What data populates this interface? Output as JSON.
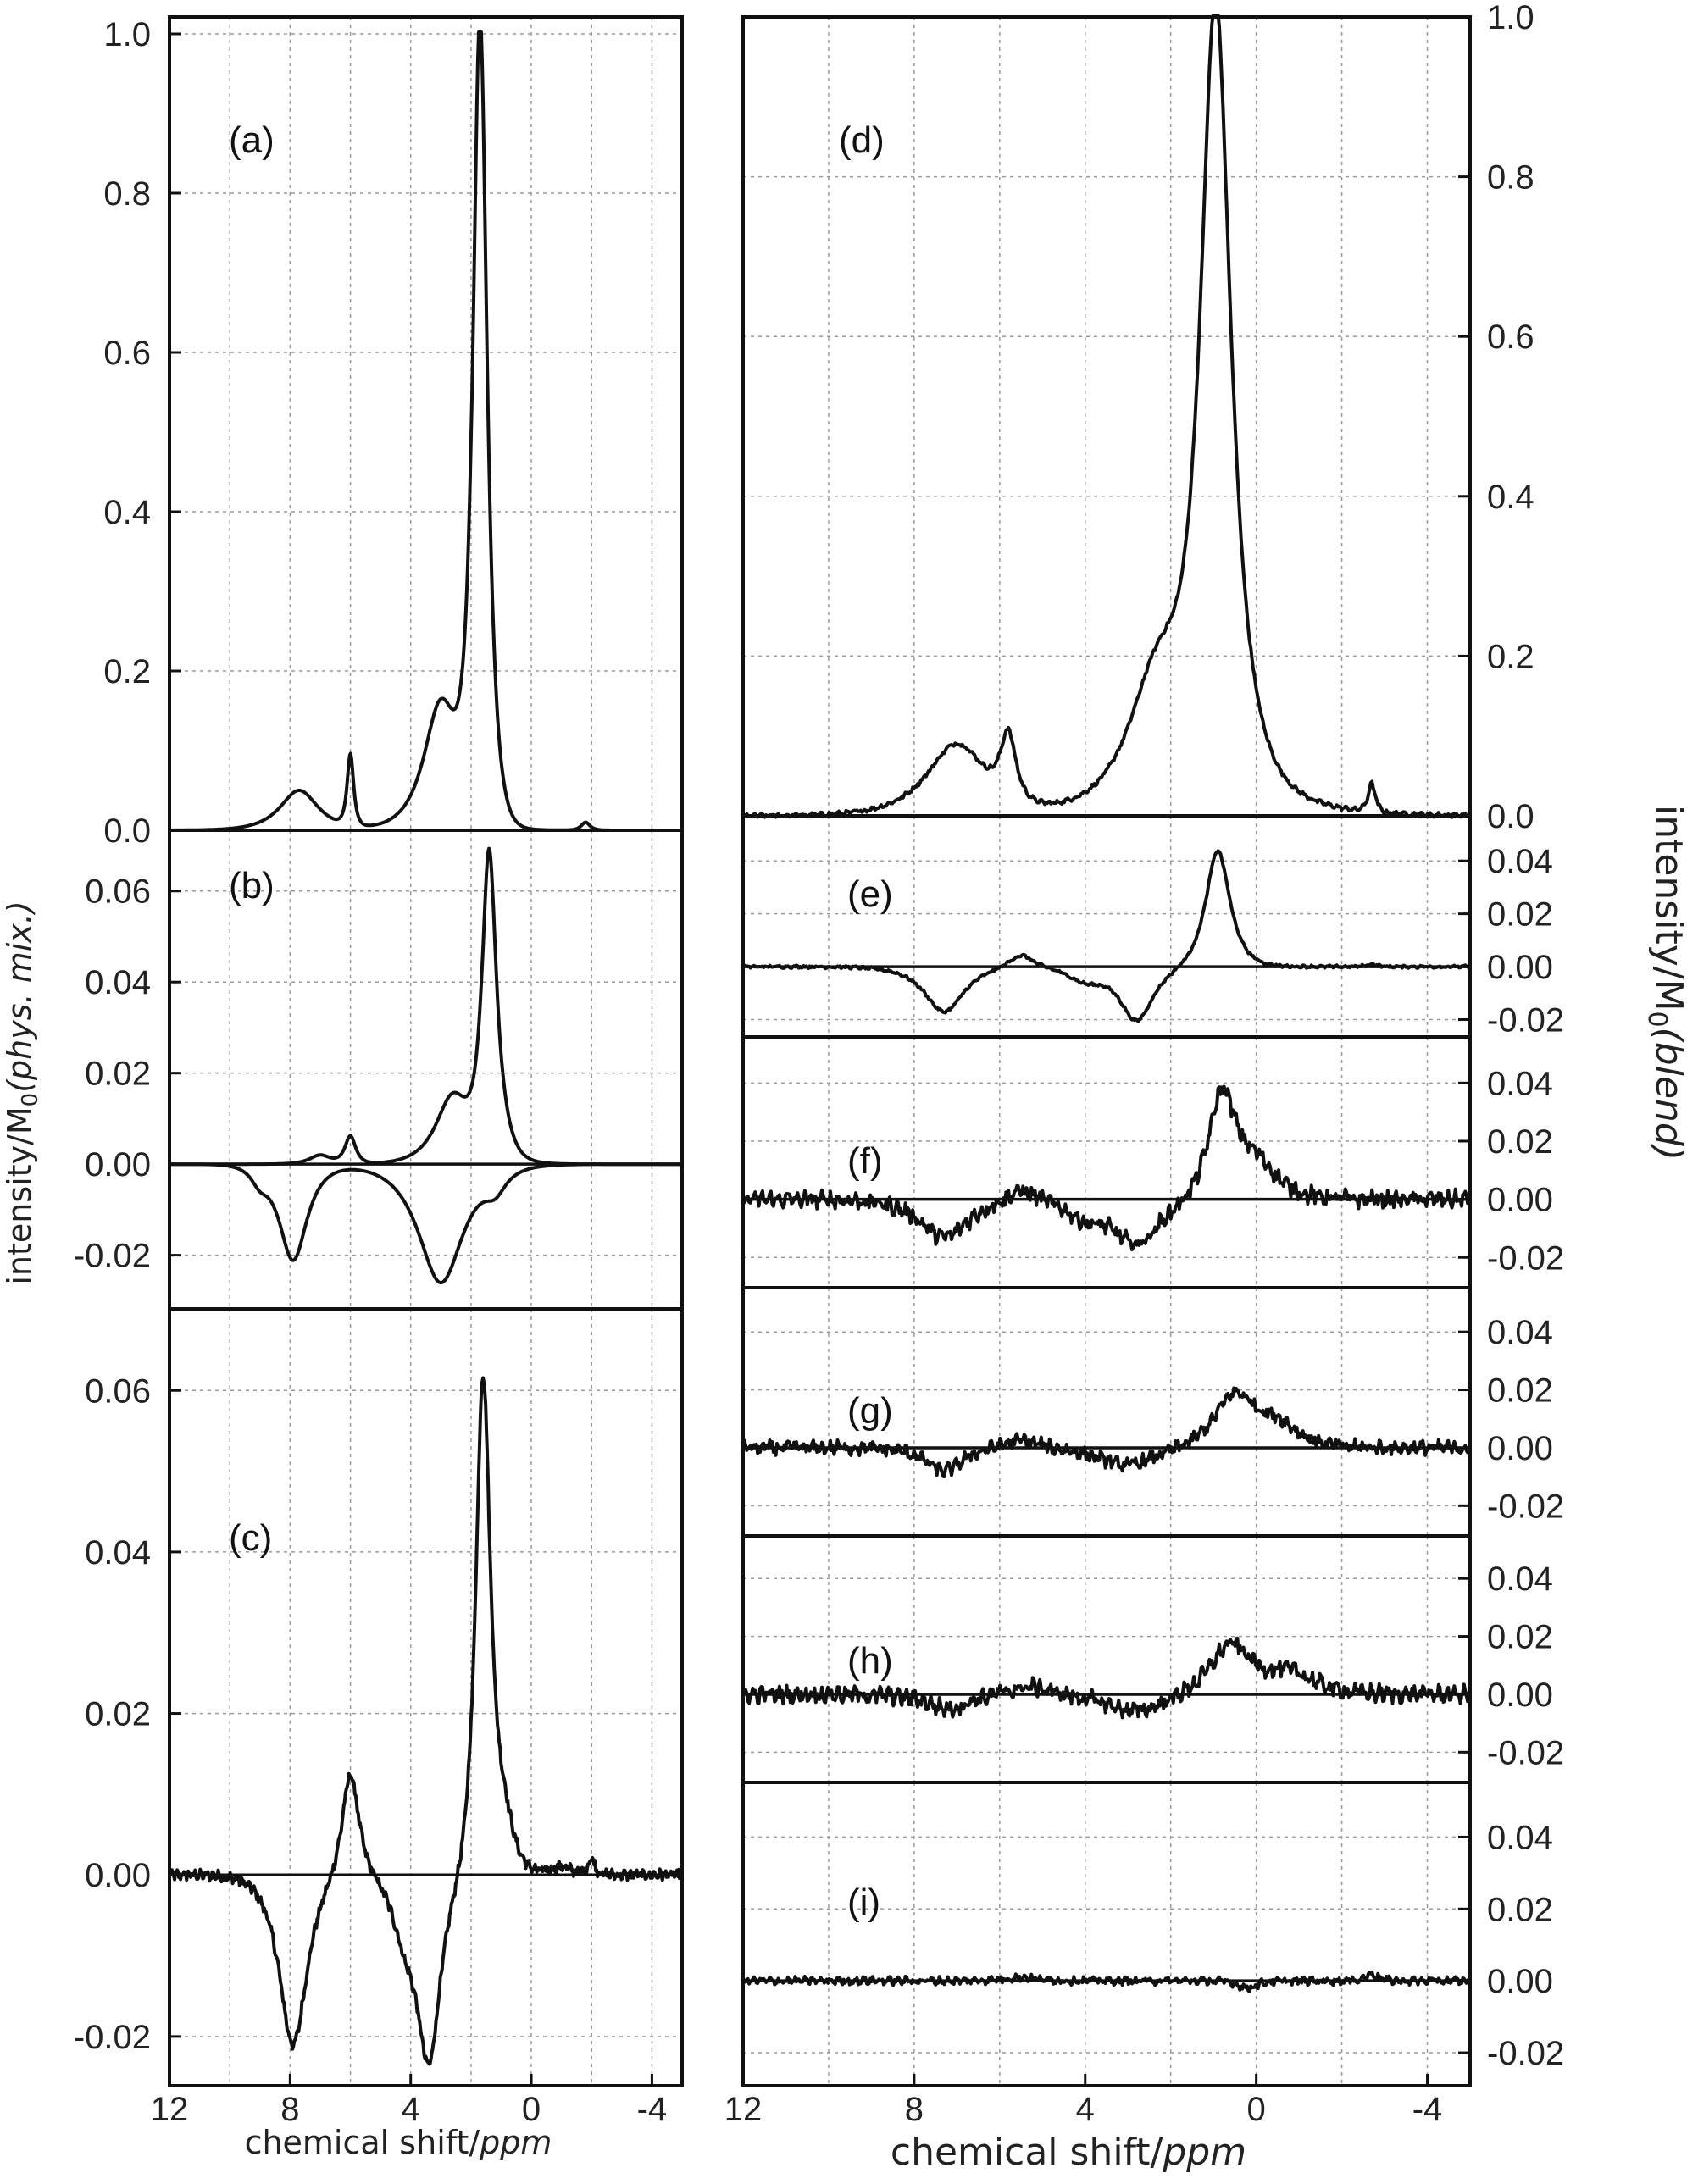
{
  "chart_data": [
    {
      "id": "a",
      "label": "(a)",
      "type": "line",
      "xlim": [
        12,
        -5
      ],
      "ylim": [
        0,
        1.0
      ],
      "yticks": [
        "0.0",
        "0.2",
        "0.4",
        "0.6",
        "0.8",
        "1.0"
      ],
      "ytick_values": [
        0,
        0.2,
        0.4,
        0.6,
        0.8,
        1.0
      ],
      "series": [
        {
          "peaks": [
            [
              1.7,
              1.0,
              0.33
            ],
            [
              3.0,
              0.16,
              0.8
            ],
            [
              6.0,
              0.09,
              0.15
            ],
            [
              7.7,
              0.05,
              0.9
            ],
            [
              -1.8,
              0.01,
              0.2
            ]
          ],
          "noise": 0
        }
      ]
    },
    {
      "id": "b",
      "label": "(b)",
      "type": "line",
      "xlim": [
        12,
        -5
      ],
      "ylim": [
        -0.029,
        0.07
      ],
      "yticks": [
        "-0.02",
        "0.00",
        "0.02",
        "0.04",
        "0.06"
      ],
      "ytick_values": [
        -0.02,
        0.0,
        0.02,
        0.04,
        0.06
      ],
      "series": [
        {
          "peaks": [
            [
              1.4,
              0.064,
              0.33
            ],
            [
              2.6,
              0.015,
              0.8
            ],
            [
              1.0,
              0.004,
              0.6
            ],
            [
              6.0,
              0.006,
              0.25
            ],
            [
              7.0,
              0.002,
              0.5
            ]
          ],
          "noise": 0
        },
        {
          "peaks": [
            [
              7.9,
              -0.021,
              0.65
            ],
            [
              3.0,
              -0.026,
              1.05
            ],
            [
              9.0,
              -0.003,
              0.4
            ],
            [
              1.2,
              -0.004,
              0.5
            ]
          ],
          "noise": 0
        }
      ]
    },
    {
      "id": "c",
      "label": "(c)",
      "type": "line",
      "xlim": [
        12,
        -5
      ],
      "ylim": [
        -0.024,
        0.068
      ],
      "yticks": [
        "-0.02",
        "0.00",
        "0.02",
        "0.04",
        "0.06"
      ],
      "ytick_values": [
        -0.02,
        0.0,
        0.02,
        0.04,
        0.06
      ],
      "series": [
        {
          "peaks": [
            [
              1.6,
              0.061,
              0.35
            ],
            [
              0.9,
              0.006,
              0.5
            ],
            [
              6.0,
              0.013,
              0.4
            ],
            [
              7.9,
              -0.021,
              0.65
            ],
            [
              3.4,
              -0.022,
              0.55
            ],
            [
              4.2,
              -0.006,
              0.6
            ],
            [
              -1.0,
              0.001,
              0.5
            ],
            [
              -2.0,
              0.002,
              0.15
            ]
          ],
          "noise": 0.0005
        }
      ]
    },
    {
      "id": "d",
      "label": "(d)",
      "type": "line",
      "xlim": [
        12,
        -5
      ],
      "ylim": [
        0,
        1.0
      ],
      "yticks": [
        "0.0",
        "0.2",
        "0.4",
        "0.6",
        "0.8",
        "1.0"
      ],
      "ytick_values": [
        0,
        0.2,
        0.4,
        0.6,
        0.8,
        1.0
      ],
      "series": [
        {
          "peaks": [
            [
              0.95,
              0.94,
              0.5
            ],
            [
              2.3,
              0.17,
              1.0
            ],
            [
              7.0,
              0.09,
              1.0
            ],
            [
              5.8,
              0.08,
              0.25
            ],
            [
              -2.7,
              0.035,
              0.12
            ],
            [
              0.4,
              0.05,
              1.6
            ]
          ],
          "noise": 0.002
        }
      ]
    },
    {
      "id": "e",
      "label": "(e)",
      "type": "line",
      "xlim": [
        12,
        -5
      ],
      "ylim": [
        -0.024,
        0.05
      ],
      "yticks": [
        "-0.02",
        "0.00",
        "0.02",
        "0.04"
      ],
      "ytick_values": [
        -0.02,
        0.0,
        0.02,
        0.04
      ],
      "series": [
        {
          "peaks": [
            [
              0.9,
              0.044,
              0.4
            ],
            [
              7.3,
              -0.017,
              0.65
            ],
            [
              5.5,
              0.005,
              0.4
            ],
            [
              2.8,
              -0.02,
              0.55
            ],
            [
              4.0,
              -0.005,
              0.6
            ],
            [
              -2.7,
              0.001,
              0.15
            ]
          ],
          "noise": 0.0004
        }
      ]
    },
    {
      "id": "f",
      "label": "(f)",
      "type": "line",
      "xlim": [
        12,
        -5
      ],
      "ylim": [
        -0.024,
        0.05
      ],
      "yticks": [
        "-0.02",
        "0.00",
        "0.02",
        "0.04"
      ],
      "ytick_values": [
        -0.02,
        0.0,
        0.02,
        0.04
      ],
      "series": [
        {
          "peaks": [
            [
              0.8,
              0.035,
              0.45
            ],
            [
              0.0,
              0.012,
              0.7
            ],
            [
              7.3,
              -0.013,
              0.8
            ],
            [
              5.5,
              0.004,
              0.5
            ],
            [
              2.8,
              -0.015,
              0.8
            ],
            [
              4.0,
              -0.005,
              0.6
            ]
          ],
          "noise": 0.0022
        }
      ]
    },
    {
      "id": "g",
      "label": "(g)",
      "type": "line",
      "xlim": [
        12,
        -5
      ],
      "ylim": [
        -0.024,
        0.05
      ],
      "yticks": [
        "-0.02",
        "0.00",
        "0.02",
        "0.04"
      ],
      "ytick_values": [
        -0.02,
        0.0,
        0.02,
        0.04
      ],
      "series": [
        {
          "peaks": [
            [
              0.5,
              0.018,
              0.7
            ],
            [
              -0.5,
              0.007,
              0.7
            ],
            [
              7.3,
              -0.008,
              0.6
            ],
            [
              5.5,
              0.003,
              0.6
            ],
            [
              3.0,
              -0.006,
              1.0
            ]
          ],
          "noise": 0.0018
        }
      ]
    },
    {
      "id": "h",
      "label": "(h)",
      "type": "line",
      "xlim": [
        12,
        -5
      ],
      "ylim": [
        -0.024,
        0.05
      ],
      "yticks": [
        "-0.02",
        "0.00",
        "0.02",
        "0.04"
      ],
      "ytick_values": [
        -0.02,
        0.0,
        0.02,
        0.04
      ],
      "series": [
        {
          "peaks": [
            [
              0.6,
              0.017,
              0.7
            ],
            [
              -0.8,
              0.007,
              0.8
            ],
            [
              7.2,
              -0.005,
              0.7
            ],
            [
              5.3,
              0.003,
              0.7
            ],
            [
              2.8,
              -0.006,
              1.0
            ]
          ],
          "noise": 0.0022
        }
      ]
    },
    {
      "id": "i",
      "label": "(i)",
      "type": "line",
      "xlim": [
        12,
        -5
      ],
      "ylim": [
        -0.024,
        0.05
      ],
      "yticks": [
        "-0.02",
        "0.00",
        "0.02",
        "0.04"
      ],
      "ytick_values": [
        -0.02,
        0.0,
        0.02,
        0.04
      ],
      "series": [
        {
          "peaks": [
            [
              -2.7,
              0.002,
              0.2
            ],
            [
              0.2,
              -0.002,
              0.3
            ],
            [
              5.5,
              0.001,
              0.5
            ]
          ],
          "noise": 0.0008
        }
      ]
    }
  ],
  "x_axis": {
    "ticks": [
      "12",
      "8",
      "4",
      "0",
      "-4"
    ],
    "tick_values": [
      12,
      8,
      4,
      0,
      -4
    ],
    "left_title_main": "chemical shift/",
    "left_title_unit": "ppm",
    "right_title_main": "chemical shift/",
    "right_title_unit": "ppm"
  },
  "y_axis": {
    "left_title_main": "intensity/M",
    "left_title_sub": "0",
    "left_title_suffix": "(phys. mix.)",
    "right_title_main": "intensity/M",
    "right_title_sub": "0",
    "right_title_suffix": "(blend)"
  }
}
